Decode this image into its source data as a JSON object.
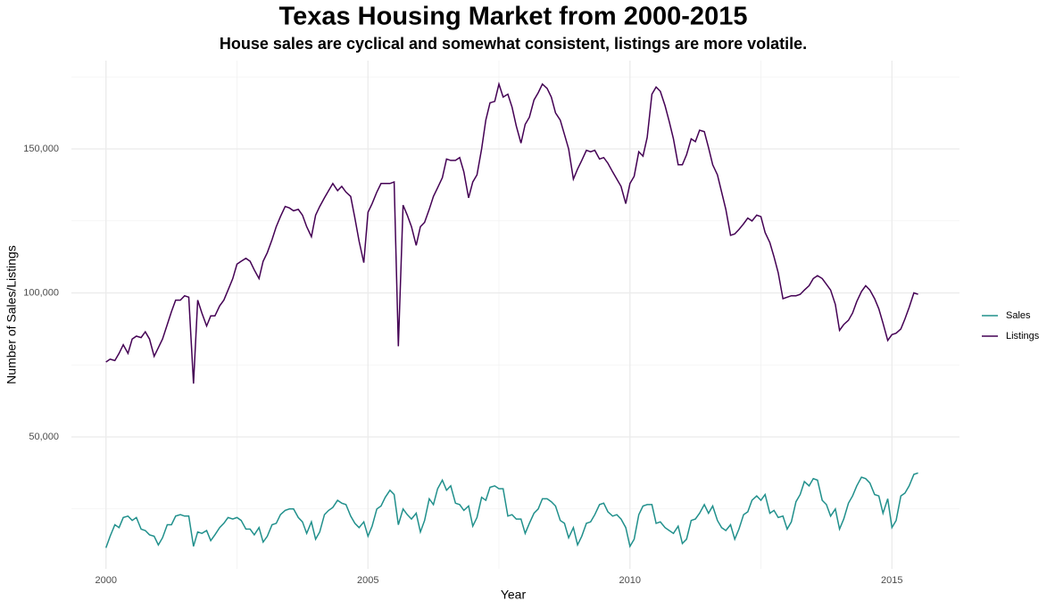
{
  "chart_data": {
    "type": "line",
    "title": "Texas Housing Market from 2000-2015",
    "subtitle": "House sales are cyclical and somewhat consistent, listings are more volatile.",
    "xlabel": "Year",
    "ylabel": "Number of Sales/Listings",
    "xlim": [
      1999.34,
      2016.29
    ],
    "ylim": [
      4180,
      180650
    ],
    "xticks": [
      2000,
      2005,
      2010,
      2015
    ],
    "yticks": [
      {
        "value": 50000,
        "label": "50,000"
      },
      {
        "value": 100000,
        "label": "100,000"
      },
      {
        "value": 150000,
        "label": "150,000"
      }
    ],
    "xminor": [
      2002.5,
      2007.5,
      2012.5
    ],
    "yminor": [
      25000,
      75000,
      125000,
      175000
    ],
    "grid": true,
    "legend": "right",
    "x": [
      2000,
      2000.08,
      2000.17,
      2000.25,
      2000.33,
      2000.42,
      2000.5,
      2000.58,
      2000.67,
      2000.75,
      2000.83,
      2000.92,
      2001,
      2001.08,
      2001.17,
      2001.25,
      2001.33,
      2001.42,
      2001.5,
      2001.58,
      2001.67,
      2001.75,
      2001.83,
      2001.92,
      2002,
      2002.08,
      2002.17,
      2002.25,
      2002.33,
      2002.42,
      2002.5,
      2002.58,
      2002.67,
      2002.75,
      2002.83,
      2002.92,
      2003,
      2003.08,
      2003.17,
      2003.25,
      2003.33,
      2003.42,
      2003.5,
      2003.58,
      2003.67,
      2003.75,
      2003.83,
      2003.92,
      2004,
      2004.08,
      2004.17,
      2004.25,
      2004.33,
      2004.42,
      2004.5,
      2004.58,
      2004.67,
      2004.75,
      2004.83,
      2004.92,
      2005,
      2005.08,
      2005.17,
      2005.25,
      2005.33,
      2005.42,
      2005.5,
      2005.58,
      2005.67,
      2005.75,
      2005.83,
      2005.92,
      2006,
      2006.08,
      2006.17,
      2006.25,
      2006.33,
      2006.42,
      2006.5,
      2006.58,
      2006.67,
      2006.75,
      2006.83,
      2006.92,
      2007,
      2007.08,
      2007.17,
      2007.25,
      2007.33,
      2007.42,
      2007.5,
      2007.58,
      2007.67,
      2007.75,
      2007.83,
      2007.92,
      2008,
      2008.08,
      2008.17,
      2008.25,
      2008.33,
      2008.42,
      2008.5,
      2008.58,
      2008.67,
      2008.75,
      2008.83,
      2008.92,
      2009,
      2009.08,
      2009.17,
      2009.25,
      2009.33,
      2009.42,
      2009.5,
      2009.58,
      2009.67,
      2009.75,
      2009.83,
      2009.92,
      2010,
      2010.08,
      2010.17,
      2010.25,
      2010.33,
      2010.42,
      2010.5,
      2010.58,
      2010.67,
      2010.75,
      2010.83,
      2010.92,
      2011,
      2011.08,
      2011.17,
      2011.25,
      2011.33,
      2011.42,
      2011.5,
      2011.58,
      2011.67,
      2011.75,
      2011.83,
      2011.92,
      2012,
      2012.08,
      2012.17,
      2012.25,
      2012.33,
      2012.42,
      2012.5,
      2012.58,
      2012.67,
      2012.75,
      2012.83,
      2012.92,
      2013,
      2013.08,
      2013.17,
      2013.25,
      2013.33,
      2013.42,
      2013.5,
      2013.58,
      2013.67,
      2013.75,
      2013.83,
      2013.92,
      2014,
      2014.08,
      2014.17,
      2014.25,
      2014.33,
      2014.42,
      2014.5,
      2014.58,
      2014.67,
      2014.75,
      2014.83,
      2014.92,
      2015,
      2015.08,
      2015.17,
      2015.25,
      2015.33,
      2015.42,
      2015.5
    ],
    "series": [
      {
        "name": "Sales",
        "color": "#21908c",
        "values": [
          11500,
          15500,
          19500,
          18500,
          22000,
          22500,
          21000,
          22000,
          18000,
          17500,
          16000,
          15500,
          12500,
          15000,
          19500,
          19500,
          22500,
          23000,
          22500,
          22500,
          12000,
          17000,
          16500,
          17500,
          14000,
          16000,
          18500,
          20000,
          22000,
          21500,
          22000,
          21000,
          18000,
          18000,
          16000,
          18500,
          13500,
          15500,
          19500,
          20000,
          23000,
          24500,
          25000,
          25000,
          22000,
          20500,
          16500,
          20500,
          14500,
          17000,
          23000,
          24500,
          25500,
          28000,
          27000,
          26500,
          22500,
          20000,
          18500,
          20500,
          15500,
          19000,
          25000,
          26000,
          29000,
          31500,
          30000,
          19500,
          25000,
          23000,
          21500,
          23500,
          17000,
          21000,
          28500,
          26500,
          32000,
          35000,
          31500,
          33000,
          27000,
          26500,
          24500,
          26000,
          19000,
          22000,
          29000,
          28000,
          32500,
          33000,
          32000,
          32000,
          22500,
          23000,
          21500,
          21500,
          16500,
          20000,
          23500,
          25000,
          28500,
          28500,
          27500,
          26000,
          21000,
          20000,
          15000,
          18500,
          12500,
          15500,
          20000,
          20500,
          23000,
          26500,
          27000,
          24000,
          22500,
          23000,
          21500,
          18500,
          12000,
          14500,
          23000,
          26000,
          26500,
          26500,
          20000,
          20500,
          18500,
          17500,
          16500,
          19000,
          13000,
          14500,
          21000,
          21500,
          23500,
          26500,
          23500,
          26000,
          21000,
          18500,
          17500,
          19500,
          14500,
          18000,
          23000,
          24000,
          28000,
          29500,
          28000,
          30000,
          23500,
          24500,
          22000,
          22500,
          18000,
          20500,
          27500,
          30000,
          34500,
          33000,
          35500,
          35000,
          28000,
          26500,
          22500,
          25000,
          18000,
          21500,
          27000,
          29500,
          33000,
          36000,
          35500,
          34000,
          30000,
          29500,
          23500,
          28500,
          18500,
          21000,
          29500,
          30500,
          33000,
          37000,
          37500
        ]
      },
      {
        "name": "Listings",
        "color": "#440154",
        "values": [
          76000,
          77000,
          76500,
          79000,
          82000,
          79000,
          84000,
          85000,
          84500,
          86500,
          84000,
          78000,
          81000,
          84000,
          89000,
          93500,
          97500,
          97500,
          99000,
          98500,
          68500,
          97500,
          93000,
          88500,
          92000,
          92000,
          95500,
          97500,
          101000,
          105000,
          110000,
          111000,
          112000,
          111000,
          108000,
          105000,
          111000,
          114000,
          118500,
          123000,
          126500,
          130000,
          129500,
          128500,
          129000,
          127000,
          123000,
          119500,
          127000,
          130000,
          133000,
          135500,
          138000,
          135500,
          137000,
          135000,
          133500,
          126000,
          118000,
          110500,
          128000,
          131000,
          135000,
          138000,
          138000,
          138000,
          138500,
          81500,
          130500,
          127000,
          123000,
          116500,
          123000,
          124500,
          129000,
          133500,
          136500,
          140000,
          146500,
          146000,
          146000,
          147000,
          142000,
          133000,
          138500,
          141000,
          150000,
          160000,
          166000,
          166500,
          172500,
          168000,
          169000,
          164500,
          158000,
          152000,
          158500,
          161000,
          167000,
          169500,
          172500,
          171000,
          168000,
          162500,
          160000,
          155000,
          150000,
          139500,
          143000,
          146000,
          149500,
          149000,
          149500,
          146500,
          147000,
          145000,
          142000,
          139500,
          137000,
          131000,
          138000,
          140500,
          149000,
          147500,
          154000,
          169000,
          171500,
          170000,
          165000,
          159500,
          153500,
          144500,
          144500,
          148000,
          153500,
          152500,
          156500,
          156000,
          150500,
          144500,
          141000,
          135000,
          129000,
          120000,
          120500,
          122000,
          124000,
          126000,
          125000,
          127000,
          126500,
          121000,
          117500,
          112500,
          107000,
          98000,
          98500,
          99000,
          99000,
          99500,
          101000,
          102500,
          105000,
          106000,
          105000,
          103000,
          101000,
          96000,
          87000,
          89000,
          90500,
          93000,
          97000,
          100500,
          102500,
          101000,
          98000,
          94500,
          89500,
          83500,
          85500,
          86000,
          87500,
          91000,
          95000,
          100000,
          99500
        ]
      }
    ]
  }
}
